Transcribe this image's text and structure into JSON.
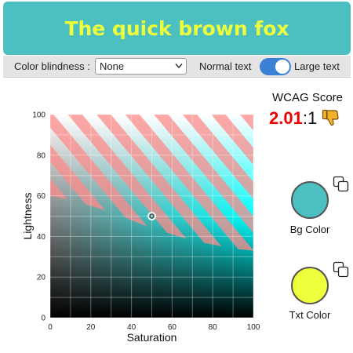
{
  "banner": {
    "text": "The quick brown fox",
    "bg_color": "#4cbfc0",
    "text_color": "#eeff3c"
  },
  "toolbar": {
    "color_blindness_label": "Color blindness :",
    "color_blindness_value": "None",
    "normal_text_label": "Normal text",
    "large_text_label": "Large text",
    "large_text_enabled": true,
    "toggle_color": "#3b82d6"
  },
  "chart_data": {
    "type": "heatmap",
    "xlabel": "Saturation",
    "ylabel": "Lightness",
    "xlim": [
      0,
      100
    ],
    "ylim": [
      0,
      100
    ],
    "x_ticks": [
      "0",
      "20",
      "40",
      "60",
      "80",
      "100"
    ],
    "y_ticks": [
      "0",
      "20",
      "40",
      "60",
      "80",
      "100"
    ],
    "grid": true,
    "hue_color": "#00ffff",
    "fail_stripe_color": "#ff8a8a",
    "fail_threshold_lightness": [
      60,
      58,
      55,
      52,
      48,
      44,
      41,
      38,
      36,
      34,
      33
    ],
    "selected_point": {
      "saturation": 50,
      "lightness": 50
    }
  },
  "wcag": {
    "title": "WCAG Score",
    "score_value": "2.01",
    "score_suffix": ":1",
    "thumb_icon": "thumbs-down-icon"
  },
  "bg_color": {
    "label": "Bg Color",
    "color": "#4cbfc0",
    "copy_icon": "copy-icon"
  },
  "txt_color": {
    "label": "Txt Color",
    "color": "#eeff3c",
    "copy_icon": "copy-icon"
  }
}
